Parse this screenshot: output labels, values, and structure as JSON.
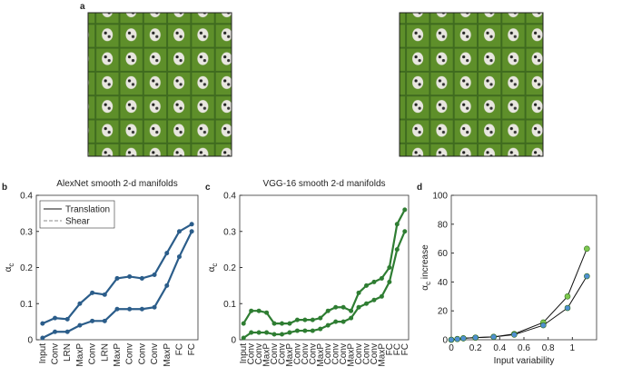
{
  "panel_a": {
    "label": "a"
  },
  "chart_data": [
    {
      "type": "line",
      "panel": "b",
      "title": "AlexNet smooth 2-d manifolds",
      "ylabel": "α",
      "ylabel_sub": "c",
      "categories": [
        "Input",
        "Conv",
        "LRN",
        "MaxP",
        "Conv",
        "LRN",
        "MaxP",
        "Conv",
        "Conv",
        "Conv",
        "MaxP",
        "FC",
        "FC"
      ],
      "series": [
        {
          "name": "Translation",
          "color": "#2b5d8a",
          "values": [
            0.045,
            0.06,
            0.057,
            0.1,
            0.13,
            0.125,
            0.17,
            0.175,
            0.17,
            0.18,
            0.24,
            0.3,
            0.32
          ]
        },
        {
          "name": "Shear",
          "color": "#2b5d8a",
          "values": [
            0.005,
            0.022,
            0.022,
            0.04,
            0.052,
            0.052,
            0.085,
            0.085,
            0.085,
            0.09,
            0.15,
            0.23,
            0.3
          ]
        }
      ],
      "ylim": [
        0,
        0.4
      ],
      "yticks": [
        0,
        0.1,
        0.2,
        0.3,
        0.4
      ],
      "legend": "upper left"
    },
    {
      "type": "line",
      "panel": "c",
      "title": "VGG-16 smooth 2-d manifolds",
      "ylabel": "α",
      "ylabel_sub": "c",
      "categories": [
        "Input",
        "Conv",
        "Conv",
        "MaxP",
        "Conv",
        "Conv",
        "MaxP",
        "Conv",
        "Conv",
        "Conv",
        "MaxP",
        "Conv",
        "Conv",
        "Conv",
        "MaxP",
        "Conv",
        "Conv",
        "Conv",
        "MaxP",
        "FC",
        "FC",
        "FC"
      ],
      "series": [
        {
          "color": "#2e7d32",
          "values": [
            0.045,
            0.08,
            0.08,
            0.075,
            0.045,
            0.045,
            0.045,
            0.055,
            0.055,
            0.055,
            0.06,
            0.08,
            0.09,
            0.09,
            0.08,
            0.13,
            0.15,
            0.16,
            0.17,
            0.2,
            0.32,
            0.36
          ]
        },
        {
          "color": "#2e7d32",
          "values": [
            0.005,
            0.02,
            0.02,
            0.02,
            0.015,
            0.015,
            0.02,
            0.025,
            0.025,
            0.025,
            0.03,
            0.04,
            0.05,
            0.05,
            0.06,
            0.09,
            0.1,
            0.11,
            0.12,
            0.16,
            0.25,
            0.3
          ]
        }
      ],
      "ylim": [
        0,
        0.4
      ],
      "yticks": [
        0,
        0.1,
        0.2,
        0.3,
        0.4
      ]
    },
    {
      "type": "scatter_line",
      "panel": "d",
      "xlabel": "Input variability",
      "ylabel": "α",
      "ylabel_sub": "c",
      "ylabel_rest": " increase",
      "x": [
        0,
        0.05,
        0.1,
        0.2,
        0.35,
        0.52,
        0.76,
        0.96,
        1.12
      ],
      "series": [
        {
          "color": "#7ec850",
          "values": [
            0,
            0.5,
            1,
            1.5,
            2,
            4,
            12,
            30,
            63
          ]
        },
        {
          "color": "#4f8fd1",
          "values": [
            0,
            0.5,
            1,
            1.5,
            2,
            3.5,
            10,
            22,
            44
          ]
        }
      ],
      "xlim": [
        0,
        1.2
      ],
      "xticks": [
        0,
        0.2,
        0.4,
        0.6,
        0.8,
        1
      ],
      "ylim": [
        0,
        100
      ],
      "yticks": [
        0,
        20,
        40,
        60,
        80,
        100
      ]
    }
  ]
}
